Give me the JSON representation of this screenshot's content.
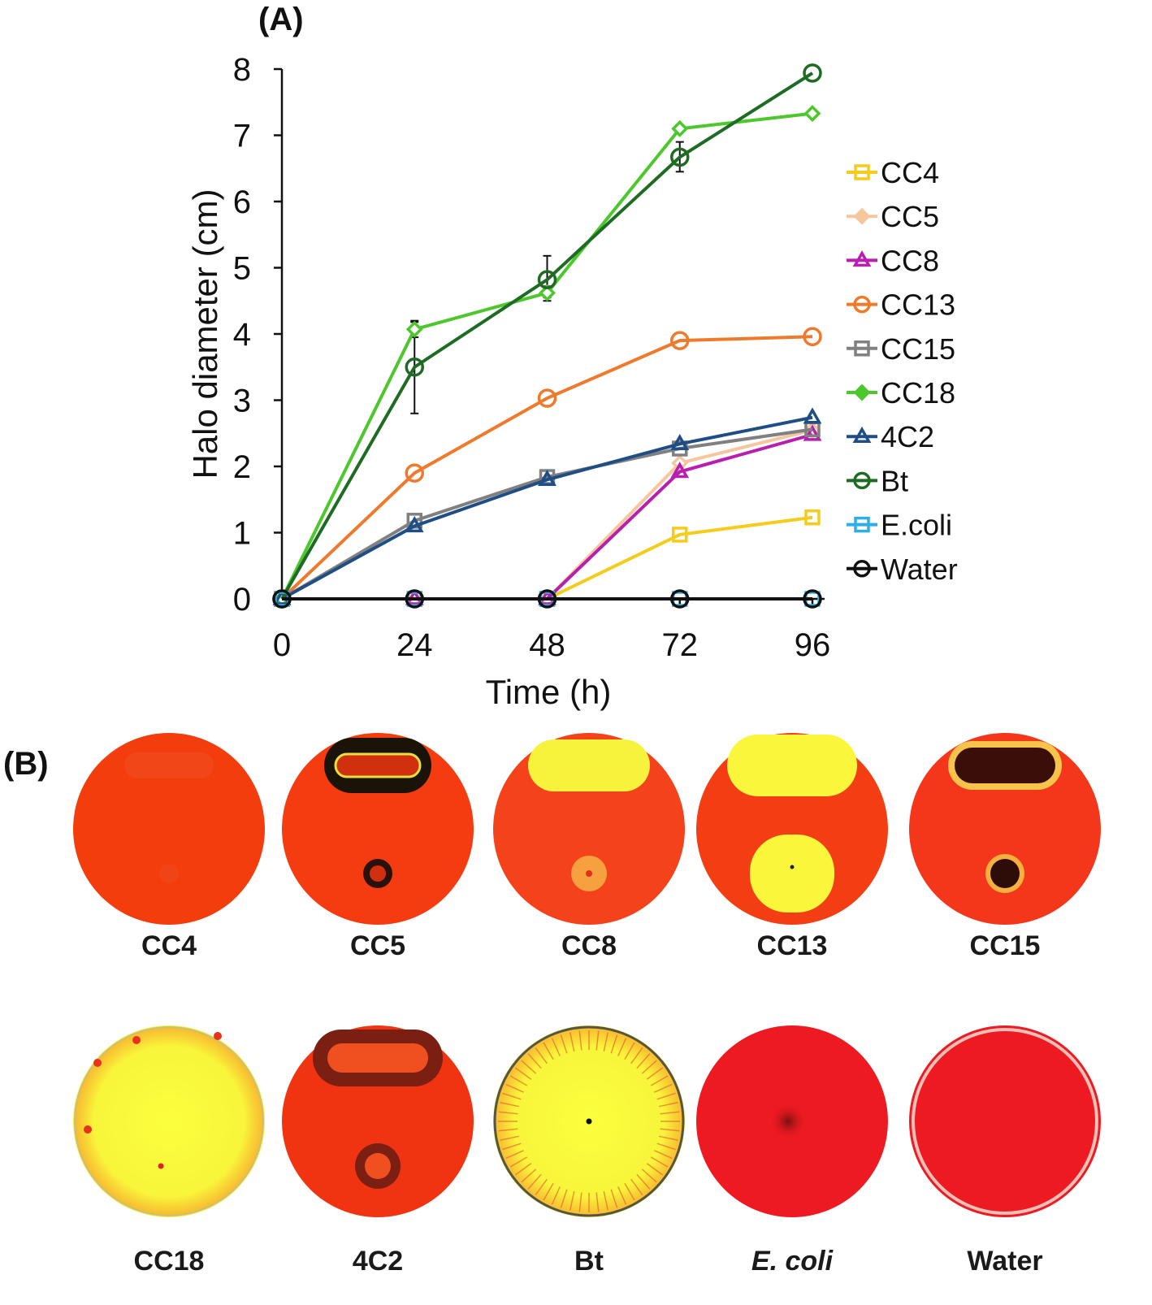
{
  "panels": {
    "a_label": "(A)",
    "b_label": "(B)"
  },
  "chart_data": {
    "type": "line",
    "title": "",
    "xlabel": "Time (h)",
    "ylabel": "Halo diameter (cm)",
    "x": [
      0,
      24,
      48,
      72,
      96
    ],
    "xlim": [
      0,
      96
    ],
    "ylim": [
      0,
      8
    ],
    "yticks": [
      0,
      1,
      2,
      3,
      4,
      5,
      6,
      7,
      8
    ],
    "legend_position": "right",
    "series": [
      {
        "name": "CC4",
        "color": "#f5cc1b",
        "marker": "square",
        "values": [
          0,
          0,
          0,
          0.97,
          1.23
        ]
      },
      {
        "name": "CC5",
        "color": "#f6c79e",
        "marker": "diamond",
        "values": [
          0,
          0,
          0,
          2.05,
          2.55
        ]
      },
      {
        "name": "CC8",
        "color": "#b81fb0",
        "marker": "triangle",
        "values": [
          0,
          0,
          0,
          1.92,
          2.48
        ]
      },
      {
        "name": "CC13",
        "color": "#ef7a2c",
        "marker": "circle",
        "values": [
          0,
          1.9,
          3.03,
          3.9,
          3.96
        ]
      },
      {
        "name": "CC15",
        "color": "#808080",
        "marker": "square",
        "values": [
          0,
          1.18,
          1.84,
          2.27,
          2.56
        ]
      },
      {
        "name": "CC18",
        "color": "#4cc72c",
        "marker": "diamond",
        "values": [
          0,
          4.07,
          4.62,
          7.1,
          7.33
        ]
      },
      {
        "name": "4C2",
        "color": "#1f4e86",
        "marker": "triangle",
        "values": [
          0,
          1.1,
          1.8,
          2.34,
          2.74
        ]
      },
      {
        "name": "Bt",
        "color": "#1e6b24",
        "marker": "circle",
        "values": [
          0,
          3.5,
          4.82,
          6.67,
          7.94
        ]
      },
      {
        "name": "E.coli",
        "color": "#2eaee6",
        "marker": "square",
        "values": [
          0,
          0,
          0,
          0,
          0
        ]
      },
      {
        "name": "Water",
        "color": "#111111",
        "marker": "circle",
        "values": [
          0,
          0,
          0,
          0,
          0
        ]
      }
    ],
    "error_bars": [
      {
        "series": "Bt",
        "x": 24,
        "low": 2.8,
        "high": 4.2
      },
      {
        "series": "Bt",
        "x": 48,
        "low": 4.55,
        "high": 5.18
      },
      {
        "series": "Bt",
        "x": 72,
        "low": 6.45,
        "high": 6.9
      },
      {
        "series": "CC18",
        "x": 24,
        "low": 3.95,
        "high": 4.18
      },
      {
        "series": "CC18",
        "x": 48,
        "low": 4.5,
        "high": 4.72
      }
    ]
  },
  "plates": [
    {
      "name": "CC4",
      "italic": false,
      "bg": "#f43d0d",
      "halo": "none"
    },
    {
      "name": "CC5",
      "italic": false,
      "bg": "#f53b10",
      "halo": "dark"
    },
    {
      "name": "CC8",
      "italic": false,
      "bg": "#f4421a",
      "halo": "yellow-top"
    },
    {
      "name": "CC13",
      "italic": false,
      "bg": "#f33e14",
      "halo": "yellow-both"
    },
    {
      "name": "CC15",
      "italic": false,
      "bg": "#f4371a",
      "halo": "dark-ring"
    },
    {
      "name": "CC18",
      "italic": false,
      "bg": "#f6f23a",
      "halo": "full-yellow"
    },
    {
      "name": "4C2",
      "italic": false,
      "bg": "#f03412",
      "halo": "dark-outline"
    },
    {
      "name": "Bt",
      "italic": false,
      "bg": "#f7f13c",
      "halo": "full-yellow-rays"
    },
    {
      "name": "E. coli",
      "italic": true,
      "bg": "#ee1a22",
      "halo": "spot"
    },
    {
      "name": "Water",
      "italic": false,
      "bg": "#ee1a22",
      "halo": "none"
    }
  ]
}
